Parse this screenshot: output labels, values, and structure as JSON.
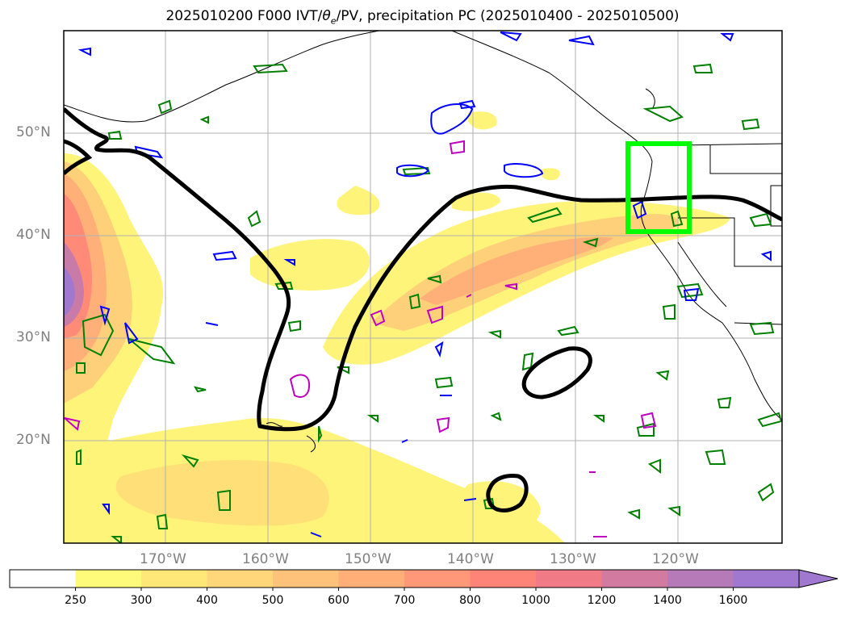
{
  "title_main": "2025010200 F000 IVT/",
  "title_theta": "θ",
  "title_sub": "e",
  "title_rest": "/PV, precipitation PC (2025010400 - 2025010500)",
  "lat_labels": [
    "50°N",
    "40°N",
    "30°N",
    "20°N"
  ],
  "lon_labels": [
    "170°W",
    "160°W",
    "150°W",
    "140°W",
    "130°W",
    "120°W"
  ],
  "colorbar": {
    "ticks": [
      "250",
      "300",
      "400",
      "500",
      "600",
      "700",
      "800",
      "1000",
      "1200",
      "1400",
      "1600"
    ],
    "colors": [
      "#ffffff",
      "#fffb7a",
      "#ffe878",
      "#ffd67a",
      "#ffc27a",
      "#ffae78",
      "#ff9878",
      "#ff8478",
      "#f07a86",
      "#d27aa0",
      "#b67ab8",
      "#a078d0"
    ]
  },
  "colors": {
    "ivt_low": "#fff47a",
    "ivt_mid": "#ffd07a",
    "ivt_high": "#ff8a78",
    "ivt_peak": "#b87ab8",
    "pv_contour": "#000000",
    "theta_green": "#008000",
    "theta_blue": "#0000ff",
    "theta_magenta": "#c000c0",
    "box": "#00ff00"
  }
}
